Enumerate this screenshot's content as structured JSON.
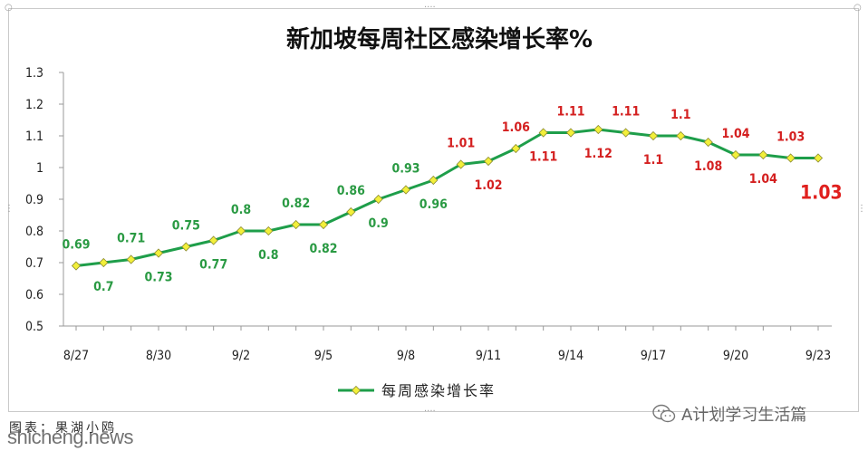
{
  "chart_data": {
    "type": "line",
    "title": "新加坡每周社区感染增长率%",
    "xlabel": "",
    "ylabel": "",
    "ylim": [
      0.5,
      1.3
    ],
    "yticks": [
      "0.5",
      "0.6",
      "0.7",
      "0.8",
      "0.9",
      "1",
      "1.1",
      "1.2",
      "1.3"
    ],
    "x_tick_labels": [
      "8/27",
      "8/30",
      "9/2",
      "9/5",
      "9/8",
      "9/11",
      "9/14",
      "9/17",
      "9/20",
      "9/23"
    ],
    "x": [
      "8/27",
      "8/28",
      "8/29",
      "8/30",
      "8/31",
      "9/1",
      "9/2",
      "9/3",
      "9/4",
      "9/5",
      "9/6",
      "9/7",
      "9/8",
      "9/9",
      "9/10",
      "9/11",
      "9/12",
      "9/13",
      "9/14",
      "9/15",
      "9/16",
      "9/17",
      "9/18",
      "9/19",
      "9/20",
      "9/21",
      "9/22",
      "9/23"
    ],
    "grid": false,
    "legend_position": "bottom",
    "series": [
      {
        "name": "每周感染增长率",
        "color": "#1e9e4a",
        "marker_color": "#f2ef3a",
        "values": [
          0.69,
          0.7,
          0.71,
          0.73,
          0.75,
          0.77,
          0.8,
          0.8,
          0.82,
          0.82,
          0.86,
          0.9,
          0.93,
          0.96,
          1.01,
          1.02,
          1.06,
          1.11,
          1.11,
          1.12,
          1.11,
          1.1,
          1.1,
          1.08,
          1.04,
          1.04,
          1.03,
          1.03
        ]
      }
    ],
    "data_labels": [
      "0.69",
      "0.7",
      "0.71",
      "0.73",
      "0.75",
      "0.77",
      "0.8",
      "0.8",
      "0.82",
      "0.82",
      "0.86",
      "0.9",
      "0.93",
      "0.96",
      "1.01",
      "1.02",
      "1.06",
      "1.11",
      "1.11",
      "1.12",
      "1.11",
      "1.1",
      "1.1",
      "1.08",
      "1.04",
      "1.04",
      "1.03",
      "1.03"
    ],
    "label_colors": {
      "below_one": "#2a9a43",
      "above_one": "#d42020"
    }
  },
  "footer": {
    "source": "图表：果湖小鸥",
    "watermark": "shicheng.news",
    "brand": "A计划学习生活篇",
    "brand_icon": "wechat-icon"
  },
  "frame": {
    "handle_glyph": "····",
    "side_handle_glyph": "⋮"
  }
}
